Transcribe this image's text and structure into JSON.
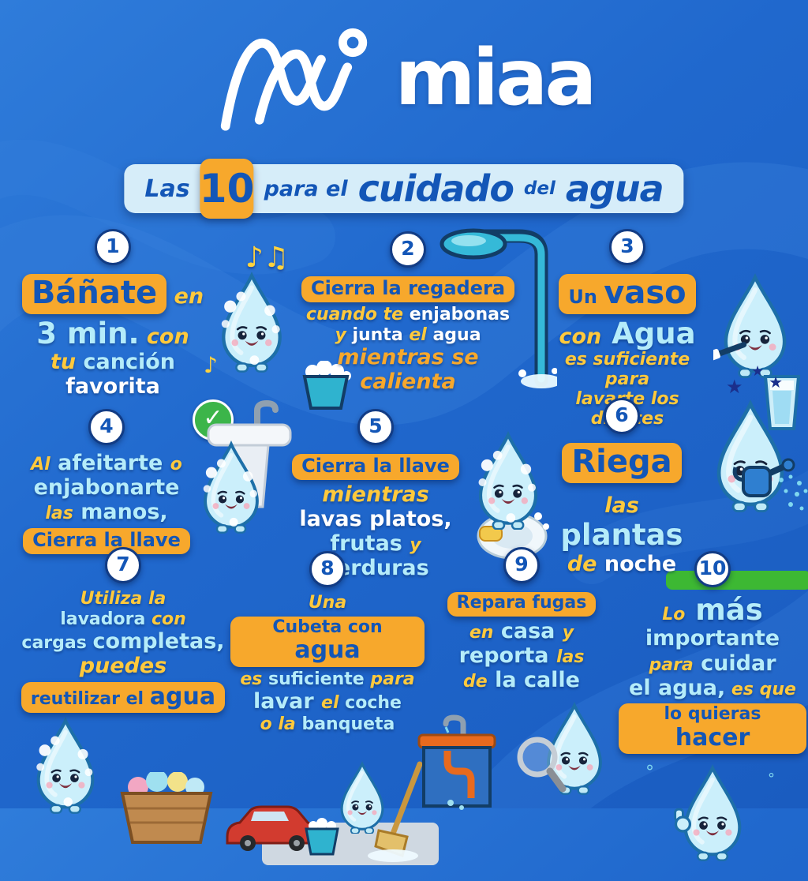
{
  "colors": {
    "background_blue": "#1e63c9",
    "wave_blue": "#3a83dd",
    "banner_bg": "#d6edf9",
    "accent_orange": "#f7a82c",
    "accent_cyan": "#b5ecfa",
    "accent_yellow": "#ffc93c",
    "text_blue": "#1356b7",
    "white": "#ffffff",
    "grass_green": "#3db833",
    "check_green": "#3cb54a"
  },
  "logo": {
    "wordmark": "miaa"
  },
  "banner": {
    "las": "Las",
    "number": "10",
    "para_el": "para el",
    "cuidado": "cuidado",
    "del": "del",
    "agua": "agua"
  },
  "tips": [
    {
      "id": 1,
      "row": 1,
      "number": "1",
      "illustration": "soapy-water-drop-mascot-with-music-notes",
      "lines": [
        [
          {
            "t": "Báñate",
            "s": "p-xl"
          },
          {
            "t": " en",
            "s": "y lg"
          }
        ],
        [
          {
            "t": "3 min.",
            "s": "c xl"
          },
          {
            "t": " con",
            "s": "y lg"
          }
        ],
        [
          {
            "t": "tu",
            "s": "y lg"
          },
          {
            "t": " canción",
            "s": "c lg"
          }
        ],
        [
          {
            "t": "favorita",
            "s": "w lg"
          }
        ]
      ]
    },
    {
      "id": 2,
      "row": 1,
      "number": "2",
      "illustration": "shower-head-and-bucket-of-water",
      "lines": [
        [
          {
            "t": "Cierra la regadera",
            "s": "p"
          }
        ],
        [
          {
            "t": "cuando te",
            "s": "y"
          },
          {
            "t": " enjabonas",
            "s": "w"
          }
        ],
        [
          {
            "t": "y",
            "s": "y"
          },
          {
            "t": " junta",
            "s": "w"
          },
          {
            "t": " el",
            "s": "y"
          },
          {
            "t": " agua",
            "s": "w"
          }
        ],
        [
          {
            "t": "mientras se",
            "s": "o lg"
          }
        ],
        [
          {
            "t": "calienta",
            "s": "o lg"
          }
        ]
      ]
    },
    {
      "id": 3,
      "row": 1,
      "number": "3",
      "illustration": "water-drop-mascot-brushing-teeth-with-glass",
      "lines": [
        [
          {
            "t": "Un ",
            "s": "p"
          },
          {
            "t": "vaso",
            "s": "p-xl"
          }
        ],
        [
          {
            "t": "con",
            "s": "y lg"
          },
          {
            "t": " Agua",
            "s": "c xl"
          }
        ],
        [
          {
            "t": "es suficiente para",
            "s": "y"
          }
        ],
        [
          {
            "t": "lavarte los dientes",
            "s": "y"
          }
        ]
      ]
    },
    {
      "id": 4,
      "row": 2,
      "number": "4",
      "illustration": "water-drop-mascot-washing-hands-at-sink-with-checkmark",
      "lines": [
        [
          {
            "t": "Al",
            "s": "y"
          },
          {
            "t": " afeitarte ",
            "s": "c lg"
          },
          {
            "t": "o",
            "s": "y"
          }
        ],
        [
          {
            "t": "enjabonarte",
            "s": "c lg"
          }
        ],
        [
          {
            "t": "las",
            "s": "y"
          },
          {
            "t": " manos,",
            "s": "c lg"
          }
        ],
        [
          {
            "t": "Cierra la llave",
            "s": "p"
          }
        ]
      ]
    },
    {
      "id": 5,
      "row": 2,
      "number": "5",
      "illustration": "water-drop-mascot-washing-dishes-with-sponge",
      "lines": [
        [
          {
            "t": "Cierra la llave",
            "s": "p"
          }
        ],
        [
          {
            "t": "mientras",
            "s": "y lg"
          }
        ],
        [
          {
            "t": "lavas platos,",
            "s": "w lg"
          }
        ],
        [
          {
            "t": "frutas ",
            "s": "c lg"
          },
          {
            "t": "y",
            "s": "y"
          },
          {
            "t": " verduras",
            "s": "c lg"
          }
        ]
      ]
    },
    {
      "id": 6,
      "row": 2,
      "number": "6",
      "illustration": "water-drop-mascot-watering-plants-at-night-with-stars-and-grass",
      "lines": [
        [
          {
            "t": "Riega",
            "s": "p-xl"
          }
        ],
        [
          {
            "t": "las",
            "s": "y lg"
          },
          {
            "t": " plantas",
            "s": "c xl"
          }
        ],
        [
          {
            "t": "de",
            "s": "y lg"
          },
          {
            "t": " noche",
            "s": "w lg"
          }
        ]
      ]
    },
    {
      "id": 7,
      "row": 3,
      "number": "7",
      "illustration": "water-drop-mascot-with-laundry-basket",
      "lines": [
        [
          {
            "t": "Utiliza la",
            "s": "y"
          }
        ],
        [
          {
            "t": "lavadora ",
            "s": "c"
          },
          {
            "t": "con",
            "s": "y"
          }
        ],
        [
          {
            "t": "cargas ",
            "s": "c"
          },
          {
            "t": "completas,",
            "s": "c lg"
          }
        ],
        [
          {
            "t": "puedes",
            "s": "y lg"
          }
        ],
        [
          {
            "t": "reutilizar el ",
            "s": "p"
          },
          {
            "t": "agua",
            "s": "p-lg"
          }
        ]
      ]
    },
    {
      "id": 8,
      "row": 3,
      "number": "8",
      "illustration": "red-car-with-mop-and-bucket-water-drop-mascot",
      "lines": [
        [
          {
            "t": "Una",
            "s": "y"
          }
        ],
        [
          {
            "t": "Cubeta con ",
            "s": "p"
          },
          {
            "t": "agua",
            "s": "p-lg"
          }
        ],
        [
          {
            "t": "es ",
            "s": "y"
          },
          {
            "t": "suficiente ",
            "s": "c"
          },
          {
            "t": "para",
            "s": "y"
          }
        ],
        [
          {
            "t": "lavar ",
            "s": "c lg"
          },
          {
            "t": "el",
            "s": "y"
          },
          {
            "t": " coche",
            "s": "c"
          }
        ],
        [
          {
            "t": "o la",
            "s": "y"
          },
          {
            "t": " banqueta",
            "s": "c"
          }
        ]
      ]
    },
    {
      "id": 9,
      "row": 3,
      "number": "9",
      "illustration": "water-drop-mascot-inspecting-leaky-sink-with-magnifier",
      "lines": [
        [
          {
            "t": "Repara fugas",
            "s": "p"
          }
        ],
        [
          {
            "t": "en",
            "s": "y"
          },
          {
            "t": " casa ",
            "s": "c lg"
          },
          {
            "t": "y",
            "s": "y"
          }
        ],
        [
          {
            "t": "reporta ",
            "s": "c lg"
          },
          {
            "t": "las",
            "s": "y"
          }
        ],
        [
          {
            "t": "de",
            "s": "y"
          },
          {
            "t": " la calle",
            "s": "c lg"
          }
        ]
      ]
    },
    {
      "id": 10,
      "row": 3,
      "number": "10",
      "illustration": "water-drop-mascot-thumbs-up",
      "lines": [
        [
          {
            "t": "Lo",
            "s": "y"
          },
          {
            "t": " más",
            "s": "c xl"
          }
        ],
        [
          {
            "t": "importante",
            "s": "c lg"
          }
        ],
        [
          {
            "t": "para",
            "s": "y"
          },
          {
            "t": " cuidar",
            "s": "c lg"
          }
        ],
        [
          {
            "t": "el agua,",
            "s": "c lg"
          },
          {
            "t": " es que",
            "s": "y"
          }
        ],
        [
          {
            "t": "lo quieras ",
            "s": "p"
          },
          {
            "t": "hacer",
            "s": "p-lg"
          }
        ]
      ]
    }
  ]
}
